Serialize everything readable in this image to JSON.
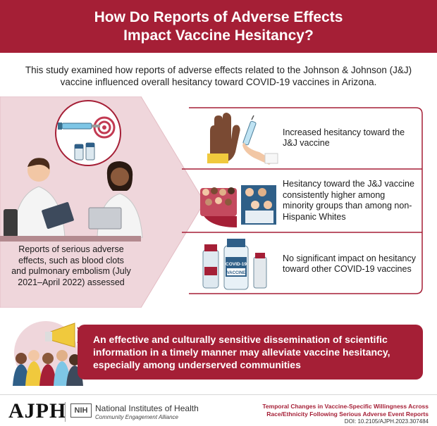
{
  "header": {
    "title_line1": "How Do Reports of Adverse Effects",
    "title_line2": "Impact Vaccine Hesitancy?"
  },
  "intro": "This study examined how reports of adverse effects related to the Johnson & Johnson (J&J) vaccine influenced overall hesitancy toward COVID-19 vaccines in Arizona.",
  "left_caption": "Reports of serious adverse effects, such as blood clots and pulmonary embolism (July 2021–April 2022) assessed",
  "findings": [
    {
      "text": "Increased hesitancy toward the J&J vaccine"
    },
    {
      "text": "Hesitancy toward the J&J vaccine consistently higher among minority groups than among non-Hispanic Whites"
    },
    {
      "text": "No significant impact on hesitancy toward other COVID-19 vaccines"
    }
  ],
  "vial_labels": {
    "covid": "COVID-19",
    "vaccine": "VACCINE"
  },
  "conclusion": "An effective and culturally sensitive dissemination of scientific information in a timely manner may alleviate vaccine hesitancy, especially among underserved communities",
  "footer": {
    "journal": "AJPH",
    "nih_abbr": "NIH",
    "nih_name": "National Institutes of Health",
    "nih_sub": "Community Engagement Alliance",
    "article_title": "Temporal Changes in Vaccine-Specific Willingness Across Race/Ethnicity Following Serious Adverse Event Reports",
    "doi": "DOI: 10.2105/AJPH.2023.307484"
  },
  "colors": {
    "brand": "#a51f36",
    "panel": "#f0d9dd"
  }
}
